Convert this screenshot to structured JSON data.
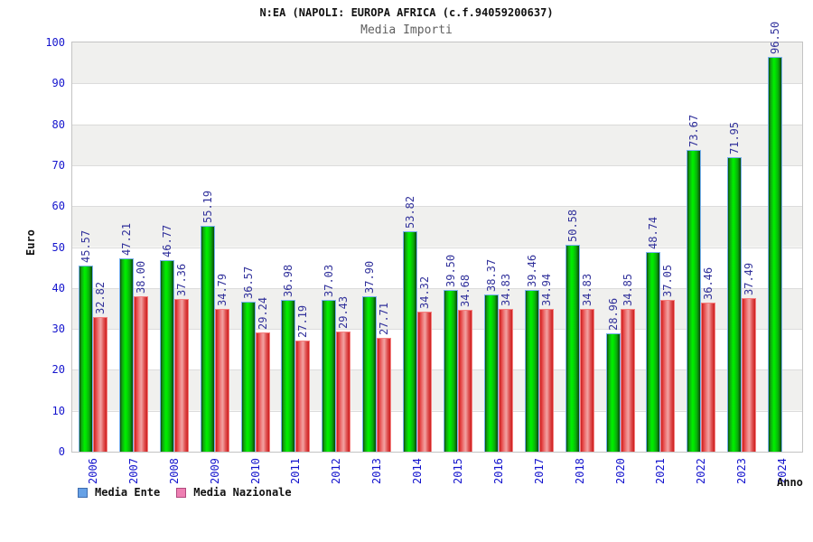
{
  "chart_data": {
    "type": "bar",
    "title": "N:EA (NAPOLI: EUROPA AFRICA (c.f.94059200637)",
    "subtitle": "Media Importi",
    "xlabel": "Anno",
    "ylabel": "Euro",
    "ylim": [
      0,
      100
    ],
    "ytick_step": 10,
    "grid": "alternating-horizontal-bands",
    "legend_position": "bottom-left",
    "categories": [
      "2006",
      "2007",
      "2008",
      "2009",
      "2010",
      "2011",
      "2012",
      "2013",
      "2014",
      "2015",
      "2016",
      "2017",
      "2018",
      "2020",
      "2021",
      "2022",
      "2023",
      "2024"
    ],
    "series": [
      {
        "name": "Media Ente",
        "bar_style": "green",
        "legend_fill": "#66a1e6",
        "legend_border": "#3f6cae",
        "values": [
          45.57,
          47.21,
          46.77,
          55.19,
          36.57,
          36.98,
          37.03,
          37.9,
          53.82,
          39.5,
          38.37,
          39.46,
          50.58,
          28.96,
          48.74,
          73.67,
          71.95,
          96.5
        ]
      },
      {
        "name": "Media Nazionale",
        "bar_style": "red",
        "legend_fill": "#ee7fb2",
        "legend_border": "#b04a7e",
        "values": [
          32.82,
          38.0,
          37.36,
          34.79,
          29.24,
          27.19,
          29.43,
          27.71,
          34.32,
          34.68,
          34.83,
          34.94,
          34.83,
          34.85,
          37.05,
          36.46,
          37.49,
          null
        ]
      }
    ],
    "colors": {
      "tick_label": "#1414cd",
      "value_label": "#31319b",
      "band_gray": "#f0f0ee",
      "band_white": "#ffffff",
      "gridline": "#dcdcdc",
      "plot_border": "#c3c3c3"
    }
  }
}
